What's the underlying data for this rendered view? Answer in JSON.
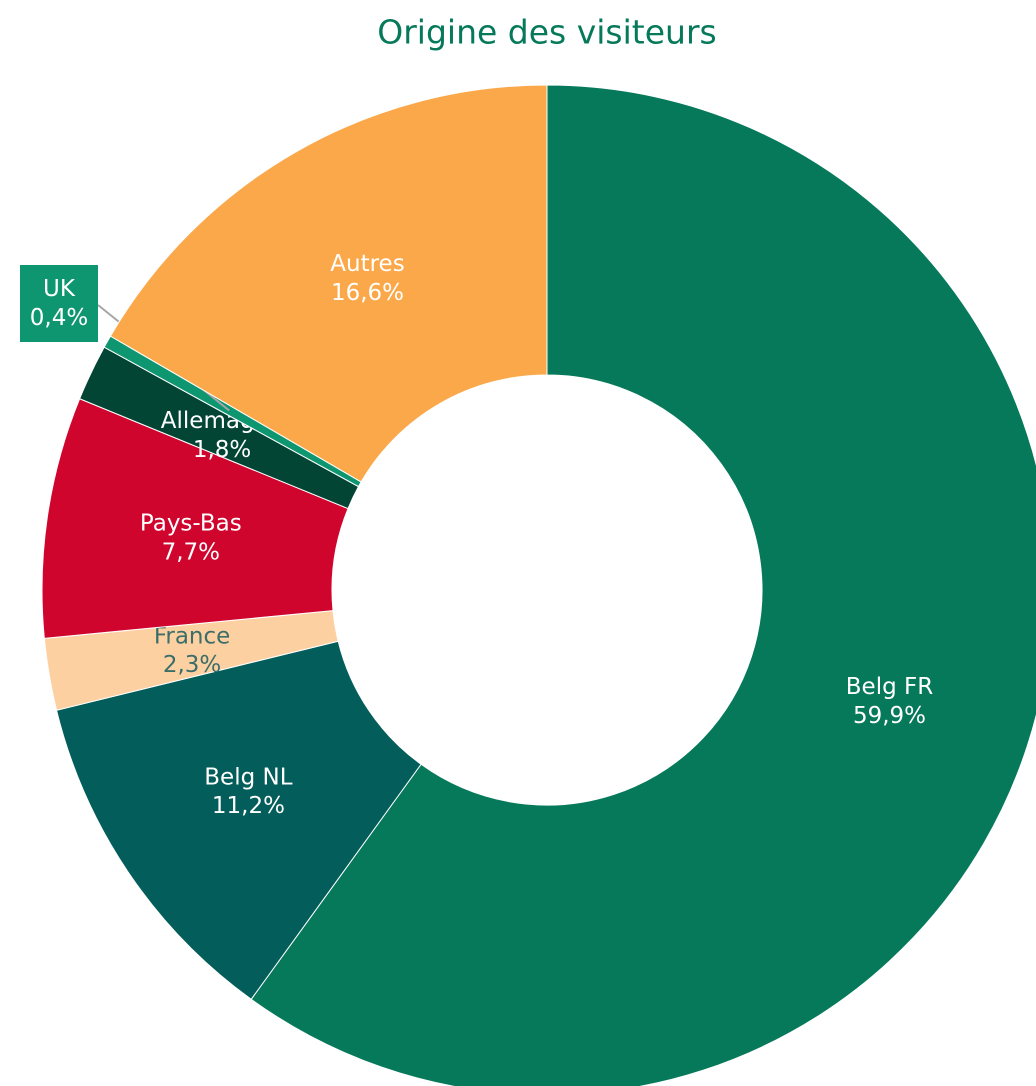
{
  "chart_data": {
    "type": "donut",
    "title": "Origine des visiteurs",
    "categories": [
      "Belg FR",
      "Belg NL",
      "France",
      "Pays-Bas",
      "Allemagne",
      "UK",
      "Autres"
    ],
    "values": [
      59.9,
      11.2,
      2.3,
      7.7,
      1.8,
      0.4,
      16.6
    ],
    "value_labels": [
      "59,9%",
      "11,2%",
      "2,3%",
      "7,7%",
      "1,8%",
      "0,4%",
      "16,6%"
    ],
    "colors": [
      "#06795b",
      "#035d5a",
      "#fdd0a2",
      "#d0052e",
      "#024534",
      "#0e9670",
      "#fba84a"
    ]
  }
}
